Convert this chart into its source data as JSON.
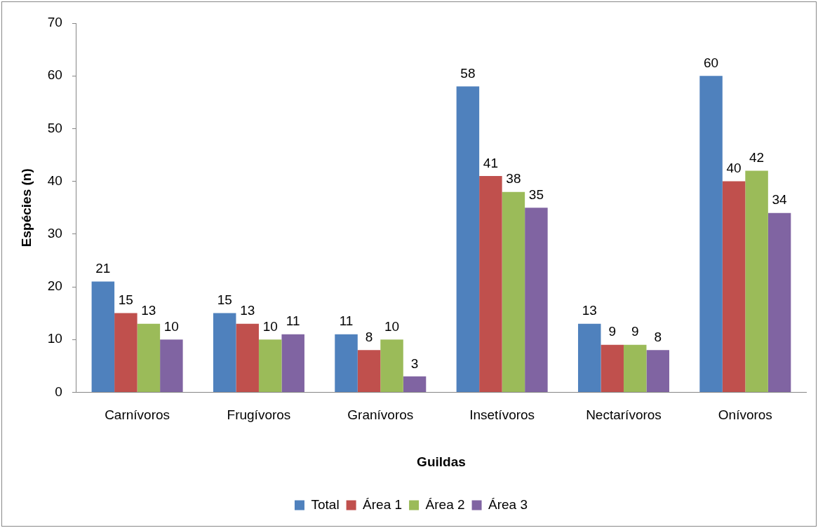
{
  "chart_data": {
    "type": "bar",
    "xlabel": "Guildas",
    "ylabel": "Espécies (n)",
    "categories": [
      "Carnívoros",
      "Frugívoros",
      "Granívoros",
      "Insetívoros",
      "Nectarívoros",
      "Onívoros"
    ],
    "series": [
      {
        "name": "Total",
        "color": "#4f81bd",
        "values": [
          21,
          15,
          11,
          58,
          13,
          60
        ]
      },
      {
        "name": "Área 1",
        "color": "#c0504d",
        "values": [
          15,
          13,
          8,
          41,
          9,
          40
        ]
      },
      {
        "name": "Área 2",
        "color": "#9bbb59",
        "values": [
          13,
          10,
          10,
          38,
          9,
          42
        ]
      },
      {
        "name": "Área 3",
        "color": "#8064a2",
        "values": [
          10,
          11,
          3,
          35,
          8,
          34
        ]
      }
    ],
    "ylim": [
      0,
      70
    ],
    "yticks": [
      0,
      10,
      20,
      30,
      40,
      50,
      60,
      70
    ],
    "grid": false,
    "legend": "bottom",
    "data_labels": true
  }
}
